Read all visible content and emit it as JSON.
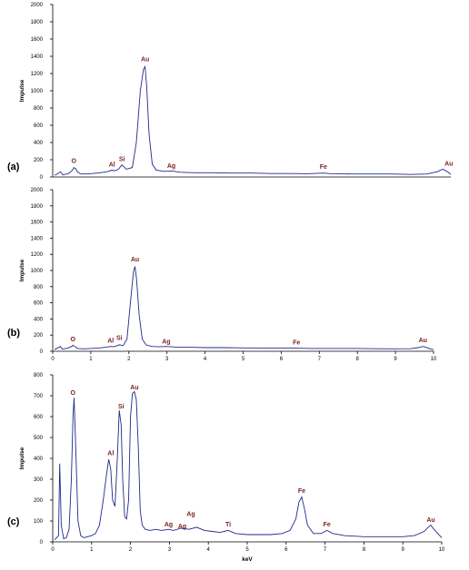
{
  "chart_data": [
    {
      "type": "line",
      "panel_label": "(a)",
      "ylabel": "Impulse",
      "xlabel": "",
      "xlim": [
        0,
        10
      ],
      "ylim": [
        0,
        2000
      ],
      "y_ticks": [
        0,
        200,
        400,
        600,
        800,
        1000,
        1200,
        1400,
        1600,
        1800,
        2000
      ],
      "x_ticks": [],
      "series": [
        {
          "x": [
            0.05,
            0.2,
            0.25,
            0.3,
            0.4,
            0.5,
            0.53,
            0.58,
            0.62,
            0.7,
            0.85,
            1.0,
            1.2,
            1.4,
            1.49,
            1.55,
            1.65,
            1.74,
            1.85,
            2.0,
            2.1,
            2.2,
            2.28,
            2.32,
            2.36,
            2.42,
            2.5,
            2.6,
            2.8,
            2.98,
            3.2,
            3.6,
            4.0,
            4.5,
            5.0,
            5.5,
            6.0,
            6.4,
            6.8,
            7.0,
            7.5,
            8.0,
            8.5,
            9.0,
            9.4,
            9.65,
            9.8,
            9.92,
            10.0
          ],
          "y": [
            20,
            60,
            25,
            30,
            40,
            80,
            110,
            95,
            60,
            35,
            35,
            40,
            50,
            65,
            80,
            70,
            90,
            140,
            90,
            110,
            400,
            1000,
            1250,
            1280,
            1050,
            500,
            150,
            80,
            65,
            70,
            55,
            50,
            50,
            45,
            45,
            40,
            40,
            38,
            45,
            38,
            35,
            35,
            35,
            30,
            35,
            60,
            90,
            60,
            30
          ]
        }
      ],
      "annotations": [
        {
          "text": "O",
          "x": 0.53,
          "y": 165
        },
        {
          "text": "Al",
          "x": 1.49,
          "y": 120
        },
        {
          "text": "Si",
          "x": 1.74,
          "y": 185
        },
        {
          "text": "Au",
          "x": 2.32,
          "y": 1340
        },
        {
          "text": "Ag",
          "x": 2.98,
          "y": 105
        },
        {
          "text": "Fe",
          "x": 6.8,
          "y": 95
        },
        {
          "text": "Au",
          "x": 9.95,
          "y": 130
        }
      ]
    },
    {
      "type": "line",
      "panel_label": "(b)",
      "ylabel": "Impulse",
      "xlabel": "",
      "xlim": [
        0,
        10
      ],
      "ylim": [
        0,
        2000
      ],
      "y_ticks": [
        0,
        200,
        400,
        600,
        800,
        1000,
        1200,
        1400,
        1600,
        1800,
        2000
      ],
      "x_ticks": [
        0,
        1,
        2,
        3,
        4,
        5,
        6,
        7,
        8,
        9,
        10
      ],
      "series": [
        {
          "x": [
            0.05,
            0.2,
            0.25,
            0.3,
            0.4,
            0.5,
            0.53,
            0.58,
            0.65,
            0.8,
            1.0,
            1.2,
            1.4,
            1.52,
            1.6,
            1.7,
            1.75,
            1.85,
            1.95,
            2.05,
            2.12,
            2.16,
            2.2,
            2.27,
            2.35,
            2.45,
            2.6,
            2.8,
            2.98,
            3.3,
            3.6,
            4.0,
            4.5,
            5.0,
            5.5,
            6.0,
            6.4,
            6.8,
            7.5,
            8.0,
            8.5,
            9.0,
            9.4,
            9.6,
            9.72,
            9.8,
            9.9,
            10.0
          ],
          "y": [
            20,
            60,
            25,
            30,
            40,
            60,
            75,
            60,
            35,
            30,
            35,
            40,
            50,
            60,
            55,
            70,
            80,
            70,
            150,
            650,
            980,
            1050,
            900,
            450,
            150,
            80,
            60,
            55,
            60,
            50,
            50,
            45,
            45,
            42,
            40,
            40,
            38,
            35,
            35,
            35,
            32,
            30,
            32,
            45,
            60,
            50,
            30,
            20
          ]
        }
      ],
      "annotations": [
        {
          "text": "O",
          "x": 0.53,
          "y": 125
        },
        {
          "text": "Al",
          "x": 1.52,
          "y": 105
        },
        {
          "text": "Si",
          "x": 1.75,
          "y": 140
        },
        {
          "text": "Au",
          "x": 2.16,
          "y": 1110
        },
        {
          "text": "Ag",
          "x": 2.98,
          "y": 95
        },
        {
          "text": "Fe",
          "x": 6.4,
          "y": 85
        },
        {
          "text": "Au",
          "x": 9.72,
          "y": 115
        }
      ]
    },
    {
      "type": "line",
      "panel_label": "(c)",
      "ylabel": "Impulse",
      "xlabel": "keV",
      "xlim": [
        0,
        10
      ],
      "ylim": [
        0,
        800
      ],
      "y_ticks": [
        0,
        100,
        200,
        300,
        400,
        500,
        600,
        700,
        800
      ],
      "x_ticks": [
        0,
        1,
        2,
        3,
        4,
        5,
        6,
        7,
        8,
        9,
        10
      ],
      "series": [
        {
          "x": [
            0.05,
            0.15,
            0.18,
            0.22,
            0.28,
            0.35,
            0.42,
            0.48,
            0.52,
            0.55,
            0.6,
            0.65,
            0.72,
            0.8,
            0.9,
            1.0,
            1.1,
            1.2,
            1.3,
            1.38,
            1.44,
            1.49,
            1.54,
            1.6,
            1.66,
            1.71,
            1.76,
            1.8,
            1.85,
            1.9,
            1.95,
            2.0,
            2.05,
            2.1,
            2.15,
            2.2,
            2.25,
            2.3,
            2.38,
            2.5,
            2.65,
            2.8,
            2.98,
            3.1,
            3.3,
            3.5,
            3.7,
            3.9,
            4.1,
            4.3,
            4.51,
            4.7,
            5.0,
            5.3,
            5.6,
            5.9,
            6.1,
            6.25,
            6.33,
            6.4,
            6.47,
            6.55,
            6.7,
            6.9,
            7.05,
            7.2,
            7.5,
            8.0,
            8.5,
            9.0,
            9.3,
            9.55,
            9.65,
            9.72,
            9.8,
            9.9,
            10.0
          ],
          "y": [
            10,
            30,
            375,
            80,
            15,
            20,
            60,
            300,
            600,
            690,
            400,
            100,
            30,
            20,
            25,
            30,
            40,
            80,
            200,
            320,
            395,
            350,
            200,
            170,
            390,
            630,
            560,
            300,
            120,
            110,
            200,
            600,
            710,
            720,
            680,
            450,
            150,
            80,
            60,
            55,
            60,
            55,
            60,
            55,
            65,
            60,
            70,
            55,
            50,
            45,
            55,
            40,
            35,
            35,
            35,
            40,
            55,
            110,
            190,
            215,
            160,
            80,
            40,
            40,
            55,
            40,
            30,
            25,
            25,
            25,
            30,
            50,
            70,
            80,
            60,
            40,
            20
          ]
        }
      ],
      "annotations": [
        {
          "text": "O",
          "x": 0.52,
          "y": 705
        },
        {
          "text": "Al",
          "x": 1.49,
          "y": 415
        },
        {
          "text": "Si",
          "x": 1.76,
          "y": 640
        },
        {
          "text": "Au",
          "x": 2.1,
          "y": 730
        },
        {
          "text": "Ag",
          "x": 2.98,
          "y": 75
        },
        {
          "text": "Ag",
          "x": 3.33,
          "y": 65
        },
        {
          "text": "Ag",
          "x": 3.55,
          "y": 125
        },
        {
          "text": "Ti",
          "x": 4.51,
          "y": 75
        },
        {
          "text": "Fe",
          "x": 6.4,
          "y": 235
        },
        {
          "text": "Fe",
          "x": 7.05,
          "y": 75
        },
        {
          "text": "Au",
          "x": 9.72,
          "y": 95
        }
      ]
    }
  ]
}
